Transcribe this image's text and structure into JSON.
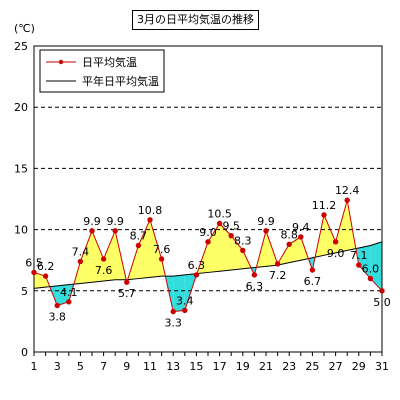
{
  "chart_data": {
    "type": "line",
    "title": "3月の日平均気温の推移",
    "ylabel": "(℃)",
    "xlabel": "",
    "ylim": [
      0,
      25
    ],
    "yticks": [
      0,
      5,
      10,
      15,
      20,
      25
    ],
    "x": [
      1,
      2,
      3,
      4,
      5,
      6,
      7,
      8,
      9,
      10,
      11,
      12,
      13,
      14,
      15,
      16,
      17,
      18,
      19,
      20,
      21,
      22,
      23,
      24,
      25,
      26,
      27,
      28,
      29,
      30,
      31
    ],
    "xtick_labels": [
      "1",
      "3",
      "5",
      "7",
      "9",
      "11",
      "13",
      "15",
      "17",
      "19",
      "21",
      "23",
      "25",
      "27",
      "29",
      "31"
    ],
    "grid": "horizontal-dashed",
    "legend": "top-left",
    "fill_above_normal_color": "#ffff66",
    "fill_below_normal_color": "#33dddd",
    "series": [
      {
        "name": "日平均気温",
        "color": "#cc0000",
        "marker": "circle",
        "values": [
          6.5,
          6.2,
          3.8,
          4.1,
          7.4,
          9.9,
          7.6,
          9.9,
          5.7,
          8.7,
          10.8,
          7.6,
          3.3,
          3.4,
          6.3,
          9.0,
          10.5,
          9.5,
          8.3,
          6.3,
          9.9,
          7.2,
          8.8,
          9.4,
          6.7,
          11.2,
          9.0,
          12.4,
          7.1,
          6.0,
          5.0
        ],
        "value_labels": [
          "6.5",
          "6.2",
          "3.8",
          "4.1",
          "7.4",
          "9.9",
          "7.6",
          "9.9",
          "5.7",
          "8.7",
          "10.8",
          "7.6",
          "3.3",
          "3.4",
          "6.3",
          "9.0",
          "10.5",
          "9.5",
          "8.3",
          "6.3",
          "9.9",
          "7.2",
          "8.8",
          "9.4",
          "6.7",
          "11.2",
          "9.0",
          "12.4",
          "7.1",
          "6.0",
          "5.0"
        ]
      },
      {
        "name": "平年日平均気温",
        "color": "#000000",
        "marker": "none",
        "values": [
          5.2,
          5.3,
          5.4,
          5.5,
          5.6,
          5.7,
          5.8,
          5.9,
          5.9,
          6.0,
          6.1,
          6.2,
          6.2,
          6.3,
          6.4,
          6.5,
          6.6,
          6.7,
          6.8,
          6.9,
          7.0,
          7.1,
          7.3,
          7.5,
          7.7,
          7.9,
          8.1,
          8.3,
          8.5,
          8.7,
          9.0
        ]
      }
    ]
  }
}
